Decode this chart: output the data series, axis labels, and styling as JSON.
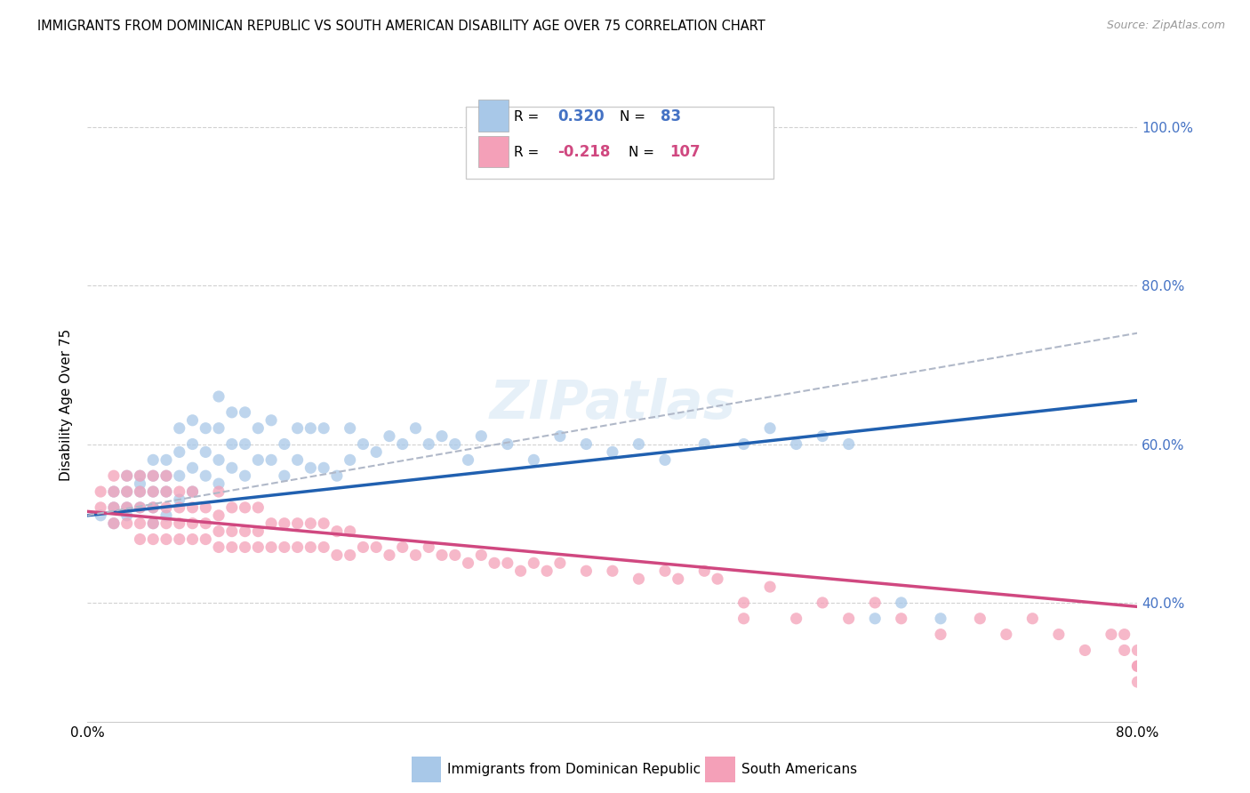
{
  "title": "IMMIGRANTS FROM DOMINICAN REPUBLIC VS SOUTH AMERICAN DISABILITY AGE OVER 75 CORRELATION CHART",
  "source": "Source: ZipAtlas.com",
  "ylabel": "Disability Age Over 75",
  "watermark": "ZIPatlas",
  "series1_label": "Immigrants from Dominican Republic",
  "series2_label": "South Americans",
  "blue_color": "#a8c8e8",
  "pink_color": "#f4a0b8",
  "blue_line_color": "#2060b0",
  "pink_line_color": "#d04880",
  "dashed_line_color": "#b0b8c8",
  "xmin": 0.0,
  "xmax": 0.8,
  "ymin": 0.25,
  "ymax": 1.05,
  "right_ytick_values": [
    0.4,
    0.6,
    0.8,
    1.0
  ],
  "right_ytick_labels": [
    "40.0%",
    "60.0%",
    "80.0%",
    "100.0%"
  ],
  "blue_trend_y_start": 0.51,
  "blue_trend_y_end": 0.655,
  "pink_trend_y_start": 0.515,
  "pink_trend_y_end": 0.395,
  "dashed_trend_y_start": 0.51,
  "dashed_trend_y_end": 0.74,
  "blue_scatter_x": [
    0.01,
    0.02,
    0.02,
    0.02,
    0.03,
    0.03,
    0.03,
    0.03,
    0.04,
    0.04,
    0.04,
    0.04,
    0.05,
    0.05,
    0.05,
    0.05,
    0.05,
    0.06,
    0.06,
    0.06,
    0.06,
    0.07,
    0.07,
    0.07,
    0.07,
    0.08,
    0.08,
    0.08,
    0.08,
    0.09,
    0.09,
    0.09,
    0.1,
    0.1,
    0.1,
    0.1,
    0.11,
    0.11,
    0.11,
    0.12,
    0.12,
    0.12,
    0.13,
    0.13,
    0.14,
    0.14,
    0.15,
    0.15,
    0.16,
    0.16,
    0.17,
    0.17,
    0.18,
    0.18,
    0.19,
    0.2,
    0.2,
    0.21,
    0.22,
    0.23,
    0.24,
    0.25,
    0.26,
    0.27,
    0.28,
    0.29,
    0.3,
    0.32,
    0.34,
    0.36,
    0.38,
    0.4,
    0.42,
    0.44,
    0.47,
    0.5,
    0.52,
    0.54,
    0.56,
    0.58,
    0.6,
    0.62,
    0.65
  ],
  "blue_scatter_y": [
    0.51,
    0.52,
    0.54,
    0.5,
    0.52,
    0.54,
    0.56,
    0.51,
    0.52,
    0.54,
    0.55,
    0.56,
    0.5,
    0.52,
    0.54,
    0.56,
    0.58,
    0.51,
    0.54,
    0.56,
    0.58,
    0.53,
    0.56,
    0.59,
    0.62,
    0.54,
    0.57,
    0.6,
    0.63,
    0.56,
    0.59,
    0.62,
    0.55,
    0.58,
    0.62,
    0.66,
    0.57,
    0.6,
    0.64,
    0.56,
    0.6,
    0.64,
    0.58,
    0.62,
    0.58,
    0.63,
    0.56,
    0.6,
    0.58,
    0.62,
    0.57,
    0.62,
    0.57,
    0.62,
    0.56,
    0.58,
    0.62,
    0.6,
    0.59,
    0.61,
    0.6,
    0.62,
    0.6,
    0.61,
    0.6,
    0.58,
    0.61,
    0.6,
    0.58,
    0.61,
    0.6,
    0.59,
    0.6,
    0.58,
    0.6,
    0.6,
    0.62,
    0.6,
    0.61,
    0.6,
    0.38,
    0.4,
    0.38
  ],
  "pink_scatter_x": [
    0.01,
    0.01,
    0.02,
    0.02,
    0.02,
    0.02,
    0.03,
    0.03,
    0.03,
    0.03,
    0.04,
    0.04,
    0.04,
    0.04,
    0.04,
    0.05,
    0.05,
    0.05,
    0.05,
    0.05,
    0.06,
    0.06,
    0.06,
    0.06,
    0.06,
    0.07,
    0.07,
    0.07,
    0.07,
    0.08,
    0.08,
    0.08,
    0.08,
    0.09,
    0.09,
    0.09,
    0.1,
    0.1,
    0.1,
    0.1,
    0.11,
    0.11,
    0.11,
    0.12,
    0.12,
    0.12,
    0.13,
    0.13,
    0.13,
    0.14,
    0.14,
    0.15,
    0.15,
    0.16,
    0.16,
    0.17,
    0.17,
    0.18,
    0.18,
    0.19,
    0.19,
    0.2,
    0.2,
    0.21,
    0.22,
    0.23,
    0.24,
    0.25,
    0.26,
    0.27,
    0.28,
    0.29,
    0.3,
    0.31,
    0.32,
    0.33,
    0.34,
    0.35,
    0.36,
    0.38,
    0.4,
    0.42,
    0.44,
    0.45,
    0.47,
    0.48,
    0.5,
    0.5,
    0.52,
    0.54,
    0.56,
    0.58,
    0.6,
    0.62,
    0.65,
    0.68,
    0.7,
    0.72,
    0.74,
    0.76,
    0.78,
    0.79,
    0.79,
    0.8,
    0.8,
    0.8,
    0.8
  ],
  "pink_scatter_y": [
    0.52,
    0.54,
    0.5,
    0.52,
    0.54,
    0.56,
    0.5,
    0.52,
    0.54,
    0.56,
    0.48,
    0.5,
    0.52,
    0.54,
    0.56,
    0.48,
    0.5,
    0.52,
    0.54,
    0.56,
    0.48,
    0.5,
    0.52,
    0.54,
    0.56,
    0.48,
    0.5,
    0.52,
    0.54,
    0.48,
    0.5,
    0.52,
    0.54,
    0.48,
    0.5,
    0.52,
    0.47,
    0.49,
    0.51,
    0.54,
    0.47,
    0.49,
    0.52,
    0.47,
    0.49,
    0.52,
    0.47,
    0.49,
    0.52,
    0.47,
    0.5,
    0.47,
    0.5,
    0.47,
    0.5,
    0.47,
    0.5,
    0.47,
    0.5,
    0.46,
    0.49,
    0.46,
    0.49,
    0.47,
    0.47,
    0.46,
    0.47,
    0.46,
    0.47,
    0.46,
    0.46,
    0.45,
    0.46,
    0.45,
    0.45,
    0.44,
    0.45,
    0.44,
    0.45,
    0.44,
    0.44,
    0.43,
    0.44,
    0.43,
    0.44,
    0.43,
    0.38,
    0.4,
    0.42,
    0.38,
    0.4,
    0.38,
    0.4,
    0.38,
    0.36,
    0.38,
    0.36,
    0.38,
    0.36,
    0.34,
    0.36,
    0.34,
    0.36,
    0.32,
    0.34,
    0.3,
    0.32
  ]
}
